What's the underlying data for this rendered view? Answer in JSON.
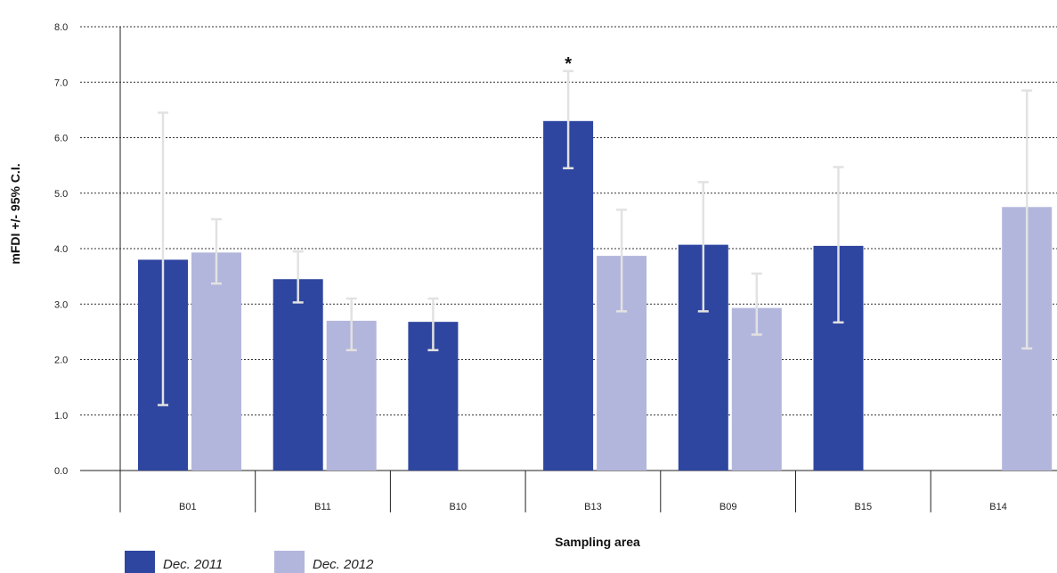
{
  "chart_data": {
    "type": "bar",
    "categories": [
      "B01",
      "B11",
      "B10",
      "B13",
      "B09",
      "B15",
      "B14"
    ],
    "series": [
      {
        "name": "Dec. 2011",
        "color": "#2e46a0",
        "values": [
          3.8,
          3.45,
          2.68,
          6.3,
          4.07,
          4.05,
          null
        ],
        "ci_low": [
          1.18,
          3.03,
          2.17,
          5.45,
          2.87,
          2.67,
          null
        ],
        "ci_high": [
          6.45,
          3.95,
          3.1,
          7.2,
          5.2,
          5.47,
          null
        ]
      },
      {
        "name": "Dec. 2012",
        "color": "#b3b6dc",
        "values": [
          3.93,
          2.7,
          null,
          3.87,
          2.93,
          null,
          4.75
        ],
        "ci_low": [
          3.37,
          2.17,
          null,
          2.87,
          2.45,
          null,
          2.2
        ],
        "ci_high": [
          4.53,
          3.1,
          null,
          4.7,
          3.55,
          null,
          6.85
        ]
      }
    ],
    "ylim": [
      0,
      8
    ],
    "yticks": [
      "0.0",
      "1.0",
      "2.0",
      "3.0",
      "4.0",
      "5.0",
      "6.0",
      "7.0",
      "8.0"
    ],
    "ylabel": "mFDI +/- 95% C.I.",
    "xlabel": "Sampling area",
    "grid": "horizontal dotted",
    "legend_position": "bottom-left",
    "annotations": [
      {
        "text": "*",
        "category": "B13",
        "series": "Dec. 2011"
      }
    ],
    "error_bar_color": "#e2e2e2"
  }
}
